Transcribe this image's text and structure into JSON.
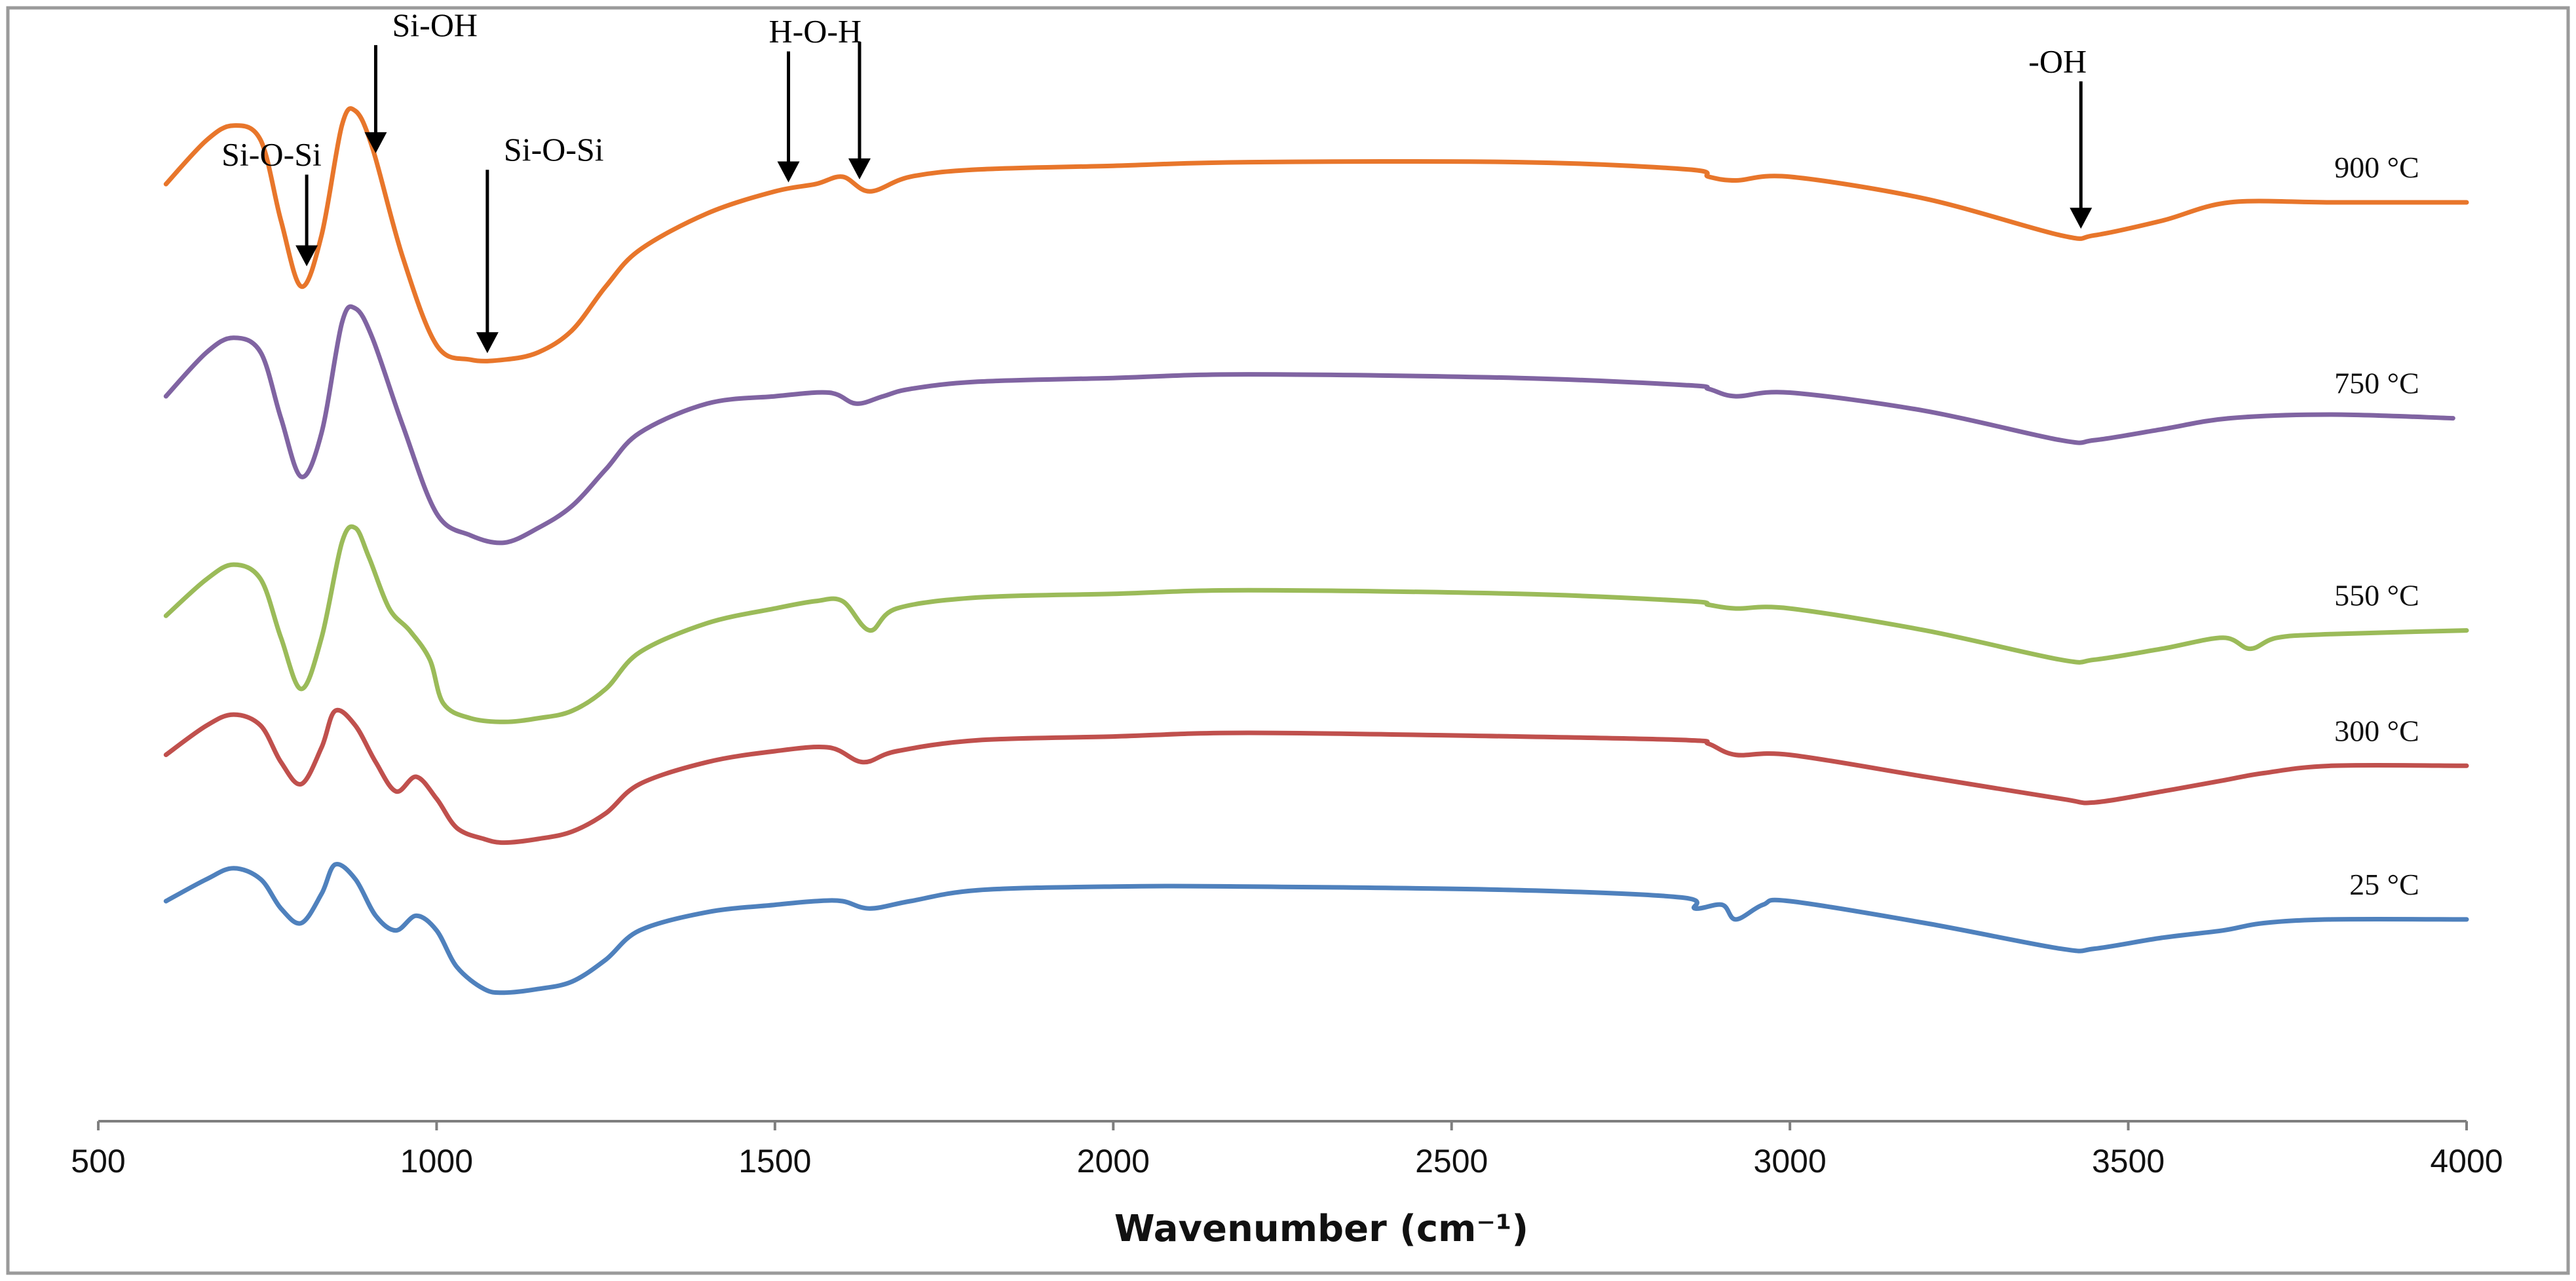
{
  "chart_data": {
    "type": "line",
    "xlabel": "Wavenumber (cm⁻¹)",
    "ylabel": "",
    "xlim": [
      500,
      4000
    ],
    "xticks": [
      500,
      1000,
      1500,
      2000,
      2500,
      3000,
      3500,
      4000
    ],
    "grid": false,
    "y_units": "relative transmittance (stacked, arbitrary)",
    "series": [
      {
        "name": "900 °C",
        "color": "#E8762B",
        "points": [
          [
            600,
            1.27
          ],
          [
            660,
            1.33
          ],
          [
            700,
            1.35
          ],
          [
            740,
            1.33
          ],
          [
            770,
            1.22
          ],
          [
            800,
            1.13
          ],
          [
            830,
            1.2
          ],
          [
            860,
            1.35
          ],
          [
            880,
            1.37
          ],
          [
            905,
            1.32
          ],
          [
            950,
            1.17
          ],
          [
            1000,
            1.05
          ],
          [
            1050,
            1.03
          ],
          [
            1100,
            1.03
          ],
          [
            1150,
            1.04
          ],
          [
            1200,
            1.07
          ],
          [
            1250,
            1.13
          ],
          [
            1300,
            1.18
          ],
          [
            1400,
            1.23
          ],
          [
            1500,
            1.26
          ],
          [
            1560,
            1.27
          ],
          [
            1600,
            1.28
          ],
          [
            1640,
            1.26
          ],
          [
            1700,
            1.28
          ],
          [
            1800,
            1.29
          ],
          [
            2000,
            1.295
          ],
          [
            2200,
            1.3
          ],
          [
            2600,
            1.3
          ],
          [
            2850,
            1.29
          ],
          [
            2880,
            1.28
          ],
          [
            2920,
            1.275
          ],
          [
            3000,
            1.28
          ],
          [
            3200,
            1.25
          ],
          [
            3400,
            1.2
          ],
          [
            3450,
            1.2
          ],
          [
            3550,
            1.22
          ],
          [
            3650,
            1.245
          ],
          [
            3800,
            1.245
          ],
          [
            4000,
            1.245
          ]
        ]
      },
      {
        "name": "750 °C",
        "color": "#8064A2",
        "points": [
          [
            600,
            0.98
          ],
          [
            660,
            1.04
          ],
          [
            700,
            1.06
          ],
          [
            740,
            1.04
          ],
          [
            770,
            0.95
          ],
          [
            800,
            0.87
          ],
          [
            830,
            0.93
          ],
          [
            860,
            1.08
          ],
          [
            880,
            1.1
          ],
          [
            905,
            1.06
          ],
          [
            950,
            0.94
          ],
          [
            1000,
            0.82
          ],
          [
            1050,
            0.79
          ],
          [
            1100,
            0.78
          ],
          [
            1150,
            0.8
          ],
          [
            1200,
            0.83
          ],
          [
            1250,
            0.88
          ],
          [
            1300,
            0.93
          ],
          [
            1400,
            0.97
          ],
          [
            1500,
            0.98
          ],
          [
            1580,
            0.985
          ],
          [
            1620,
            0.97
          ],
          [
            1660,
            0.98
          ],
          [
            1700,
            0.99
          ],
          [
            1800,
            1.0
          ],
          [
            2000,
            1.005
          ],
          [
            2200,
            1.01
          ],
          [
            2600,
            1.005
          ],
          [
            2850,
            0.995
          ],
          [
            2880,
            0.99
          ],
          [
            2920,
            0.98
          ],
          [
            3000,
            0.985
          ],
          [
            3200,
            0.96
          ],
          [
            3400,
            0.92
          ],
          [
            3450,
            0.92
          ],
          [
            3550,
            0.935
          ],
          [
            3650,
            0.95
          ],
          [
            3800,
            0.955
          ],
          [
            3980,
            0.95
          ]
        ]
      },
      {
        "name": "550 °C",
        "color": "#9BBB59",
        "points": [
          [
            600,
            0.68
          ],
          [
            660,
            0.73
          ],
          [
            700,
            0.75
          ],
          [
            740,
            0.73
          ],
          [
            770,
            0.65
          ],
          [
            800,
            0.58
          ],
          [
            830,
            0.65
          ],
          [
            860,
            0.78
          ],
          [
            880,
            0.8
          ],
          [
            900,
            0.76
          ],
          [
            930,
            0.69
          ],
          [
            960,
            0.66
          ],
          [
            990,
            0.62
          ],
          [
            1010,
            0.56
          ],
          [
            1050,
            0.54
          ],
          [
            1100,
            0.535
          ],
          [
            1150,
            0.54
          ],
          [
            1200,
            0.55
          ],
          [
            1250,
            0.58
          ],
          [
            1300,
            0.63
          ],
          [
            1400,
            0.67
          ],
          [
            1500,
            0.69
          ],
          [
            1560,
            0.7
          ],
          [
            1600,
            0.7
          ],
          [
            1640,
            0.66
          ],
          [
            1680,
            0.69
          ],
          [
            1800,
            0.705
          ],
          [
            2000,
            0.71
          ],
          [
            2200,
            0.715
          ],
          [
            2600,
            0.71
          ],
          [
            2850,
            0.7
          ],
          [
            2880,
            0.695
          ],
          [
            2920,
            0.69
          ],
          [
            3000,
            0.69
          ],
          [
            3200,
            0.66
          ],
          [
            3400,
            0.62
          ],
          [
            3450,
            0.62
          ],
          [
            3550,
            0.635
          ],
          [
            3640,
            0.65
          ],
          [
            3680,
            0.635
          ],
          [
            3720,
            0.65
          ],
          [
            3800,
            0.655
          ],
          [
            4000,
            0.66
          ]
        ]
      },
      {
        "name": "300 °C",
        "color": "#C0504D",
        "points": [
          [
            600,
            0.49
          ],
          [
            660,
            0.53
          ],
          [
            700,
            0.545
          ],
          [
            740,
            0.53
          ],
          [
            770,
            0.48
          ],
          [
            800,
            0.45
          ],
          [
            830,
            0.5
          ],
          [
            850,
            0.55
          ],
          [
            880,
            0.53
          ],
          [
            910,
            0.48
          ],
          [
            940,
            0.44
          ],
          [
            970,
            0.46
          ],
          [
            1000,
            0.43
          ],
          [
            1030,
            0.39
          ],
          [
            1070,
            0.375
          ],
          [
            1100,
            0.37
          ],
          [
            1150,
            0.375
          ],
          [
            1200,
            0.385
          ],
          [
            1250,
            0.41
          ],
          [
            1300,
            0.45
          ],
          [
            1400,
            0.48
          ],
          [
            1500,
            0.495
          ],
          [
            1580,
            0.5
          ],
          [
            1630,
            0.48
          ],
          [
            1680,
            0.495
          ],
          [
            1800,
            0.51
          ],
          [
            2000,
            0.515
          ],
          [
            2200,
            0.52
          ],
          [
            2600,
            0.515
          ],
          [
            2850,
            0.51
          ],
          [
            2880,
            0.505
          ],
          [
            2920,
            0.49
          ],
          [
            3000,
            0.49
          ],
          [
            3200,
            0.46
          ],
          [
            3400,
            0.43
          ],
          [
            3450,
            0.425
          ],
          [
            3550,
            0.44
          ],
          [
            3640,
            0.455
          ],
          [
            3700,
            0.465
          ],
          [
            3800,
            0.475
          ],
          [
            4000,
            0.475
          ]
        ]
      },
      {
        "name": "25 °C",
        "color": "#4F81BD",
        "points": [
          [
            600,
            0.29
          ],
          [
            660,
            0.32
          ],
          [
            700,
            0.335
          ],
          [
            740,
            0.32
          ],
          [
            770,
            0.28
          ],
          [
            800,
            0.26
          ],
          [
            830,
            0.3
          ],
          [
            850,
            0.34
          ],
          [
            880,
            0.32
          ],
          [
            910,
            0.27
          ],
          [
            940,
            0.25
          ],
          [
            970,
            0.27
          ],
          [
            1000,
            0.25
          ],
          [
            1030,
            0.2
          ],
          [
            1070,
            0.17
          ],
          [
            1100,
            0.165
          ],
          [
            1150,
            0.17
          ],
          [
            1200,
            0.18
          ],
          [
            1250,
            0.21
          ],
          [
            1300,
            0.25
          ],
          [
            1400,
            0.275
          ],
          [
            1500,
            0.285
          ],
          [
            1560,
            0.29
          ],
          [
            1600,
            0.29
          ],
          [
            1640,
            0.28
          ],
          [
            1700,
            0.29
          ],
          [
            1800,
            0.305
          ],
          [
            2000,
            0.31
          ],
          [
            2200,
            0.31
          ],
          [
            2600,
            0.305
          ],
          [
            2840,
            0.295
          ],
          [
            2860,
            0.28
          ],
          [
            2900,
            0.285
          ],
          [
            2920,
            0.265
          ],
          [
            2960,
            0.285
          ],
          [
            3000,
            0.29
          ],
          [
            3200,
            0.26
          ],
          [
            3400,
            0.225
          ],
          [
            3450,
            0.225
          ],
          [
            3550,
            0.24
          ],
          [
            3640,
            0.25
          ],
          [
            3700,
            0.26
          ],
          [
            3800,
            0.265
          ],
          [
            4000,
            0.265
          ]
        ]
      }
    ],
    "annotations": [
      {
        "text": "Si-O-Si",
        "x": 808,
        "series": "900 °C"
      },
      {
        "text": "Si-OH",
        "x": 910,
        "series": "900 °C"
      },
      {
        "text": "Si-O-Si",
        "x": 1075,
        "series": "900 °C"
      },
      {
        "text": "H-O-H",
        "x": 1520,
        "series": "900 °C"
      },
      {
        "text": "",
        "x": 1625,
        "series": "900 °C"
      },
      {
        "text": "-OH",
        "x": 3430,
        "series": "900 °C"
      }
    ]
  }
}
